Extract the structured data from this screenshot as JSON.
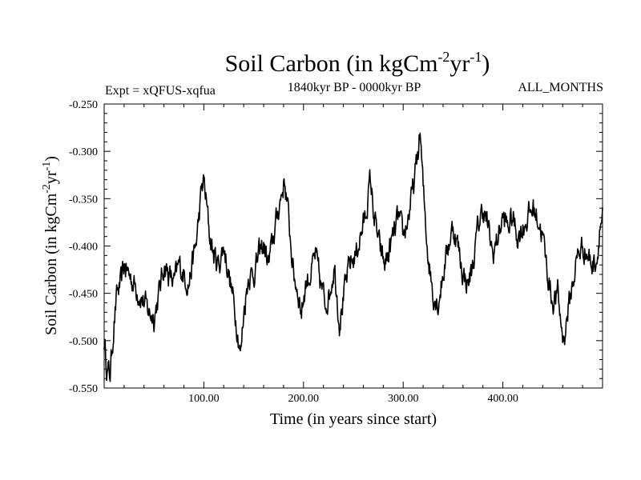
{
  "chart_data": {
    "type": "line",
    "title": {
      "main": "Soil Carbon (in kgCm",
      "sup1": "-2",
      "mid": "yr",
      "sup2": "-1",
      "end": ")"
    },
    "subtitle_left": "Expt = xQFUS-xqfua",
    "subtitle_center": "1840kyr BP - 0000kyr BP",
    "subtitle_right": "ALL_MONTHS",
    "xlabel": "Time (in years since start)",
    "ylabel": {
      "main": "Soil Carbon (in kgCm",
      "sup1": "-2",
      "mid": "yr",
      "sup2": "-1",
      "end": ")"
    },
    "xlim": [
      0,
      500
    ],
    "ylim": [
      -0.55,
      -0.25
    ],
    "xticks": [
      100,
      200,
      300,
      400
    ],
    "xtick_labels": [
      "100.00",
      "200.00",
      "300.00",
      "400.00"
    ],
    "yticks": [
      -0.25,
      -0.3,
      -0.35,
      -0.4,
      -0.45,
      -0.5,
      -0.55
    ],
    "ytick_labels": [
      "-0.250",
      "-0.300",
      "-0.350",
      "-0.400",
      "-0.450",
      "-0.500",
      "-0.550"
    ],
    "series": [
      {
        "name": "Soil Carbon",
        "keypoints": [
          [
            0,
            -0.5
          ],
          [
            3,
            -0.53
          ],
          [
            6,
            -0.535
          ],
          [
            10,
            -0.48
          ],
          [
            13,
            -0.45
          ],
          [
            17,
            -0.44
          ],
          [
            20,
            -0.42
          ],
          [
            25,
            -0.43
          ],
          [
            30,
            -0.44
          ],
          [
            35,
            -0.45
          ],
          [
            40,
            -0.46
          ],
          [
            45,
            -0.47
          ],
          [
            50,
            -0.475
          ],
          [
            55,
            -0.45
          ],
          [
            60,
            -0.42
          ],
          [
            65,
            -0.43
          ],
          [
            70,
            -0.44
          ],
          [
            75,
            -0.42
          ],
          [
            80,
            -0.43
          ],
          [
            85,
            -0.44
          ],
          [
            88,
            -0.42
          ],
          [
            92,
            -0.4
          ],
          [
            95,
            -0.37
          ],
          [
            98,
            -0.34
          ],
          [
            100,
            -0.33
          ],
          [
            103,
            -0.36
          ],
          [
            106,
            -0.39
          ],
          [
            110,
            -0.41
          ],
          [
            115,
            -0.42
          ],
          [
            120,
            -0.4
          ],
          [
            125,
            -0.43
          ],
          [
            130,
            -0.46
          ],
          [
            134,
            -0.49
          ],
          [
            137,
            -0.515
          ],
          [
            140,
            -0.47
          ],
          [
            145,
            -0.43
          ],
          [
            150,
            -0.43
          ],
          [
            155,
            -0.41
          ],
          [
            160,
            -0.4
          ],
          [
            165,
            -0.42
          ],
          [
            170,
            -0.39
          ],
          [
            175,
            -0.36
          ],
          [
            181,
            -0.33
          ],
          [
            185,
            -0.37
          ],
          [
            190,
            -0.43
          ],
          [
            195,
            -0.45
          ],
          [
            198,
            -0.47
          ],
          [
            202,
            -0.44
          ],
          [
            207,
            -0.43
          ],
          [
            212,
            -0.41
          ],
          [
            217,
            -0.44
          ],
          [
            222,
            -0.46
          ],
          [
            226,
            -0.45
          ],
          [
            231,
            -0.42
          ],
          [
            236,
            -0.48
          ],
          [
            241,
            -0.45
          ],
          [
            246,
            -0.42
          ],
          [
            252,
            -0.41
          ],
          [
            257,
            -0.39
          ],
          [
            262,
            -0.37
          ],
          [
            267,
            -0.33
          ],
          [
            271,
            -0.37
          ],
          [
            276,
            -0.4
          ],
          [
            281,
            -0.42
          ],
          [
            285,
            -0.41
          ],
          [
            290,
            -0.39
          ],
          [
            295,
            -0.37
          ],
          [
            300,
            -0.39
          ],
          [
            305,
            -0.37
          ],
          [
            310,
            -0.34
          ],
          [
            314,
            -0.31
          ],
          [
            317,
            -0.28
          ],
          [
            320,
            -0.34
          ],
          [
            325,
            -0.41
          ],
          [
            330,
            -0.45
          ],
          [
            335,
            -0.46
          ],
          [
            340,
            -0.43
          ],
          [
            345,
            -0.4
          ],
          [
            350,
            -0.38
          ],
          [
            355,
            -0.4
          ],
          [
            360,
            -0.43
          ],
          [
            365,
            -0.44
          ],
          [
            370,
            -0.42
          ],
          [
            375,
            -0.38
          ],
          [
            380,
            -0.36
          ],
          [
            385,
            -0.38
          ],
          [
            390,
            -0.41
          ],
          [
            395,
            -0.39
          ],
          [
            400,
            -0.37
          ],
          [
            405,
            -0.38
          ],
          [
            410,
            -0.37
          ],
          [
            415,
            -0.39
          ],
          [
            420,
            -0.38
          ],
          [
            425,
            -0.37
          ],
          [
            430,
            -0.36
          ],
          [
            435,
            -0.37
          ],
          [
            440,
            -0.39
          ],
          [
            445,
            -0.43
          ],
          [
            450,
            -0.46
          ],
          [
            455,
            -0.45
          ],
          [
            458,
            -0.48
          ],
          [
            461,
            -0.5
          ],
          [
            465,
            -0.47
          ],
          [
            470,
            -0.44
          ],
          [
            475,
            -0.41
          ],
          [
            480,
            -0.4
          ],
          [
            485,
            -0.41
          ],
          [
            490,
            -0.42
          ],
          [
            495,
            -0.41
          ],
          [
            497,
            -0.38
          ],
          [
            500,
            -0.37
          ]
        ]
      }
    ]
  }
}
